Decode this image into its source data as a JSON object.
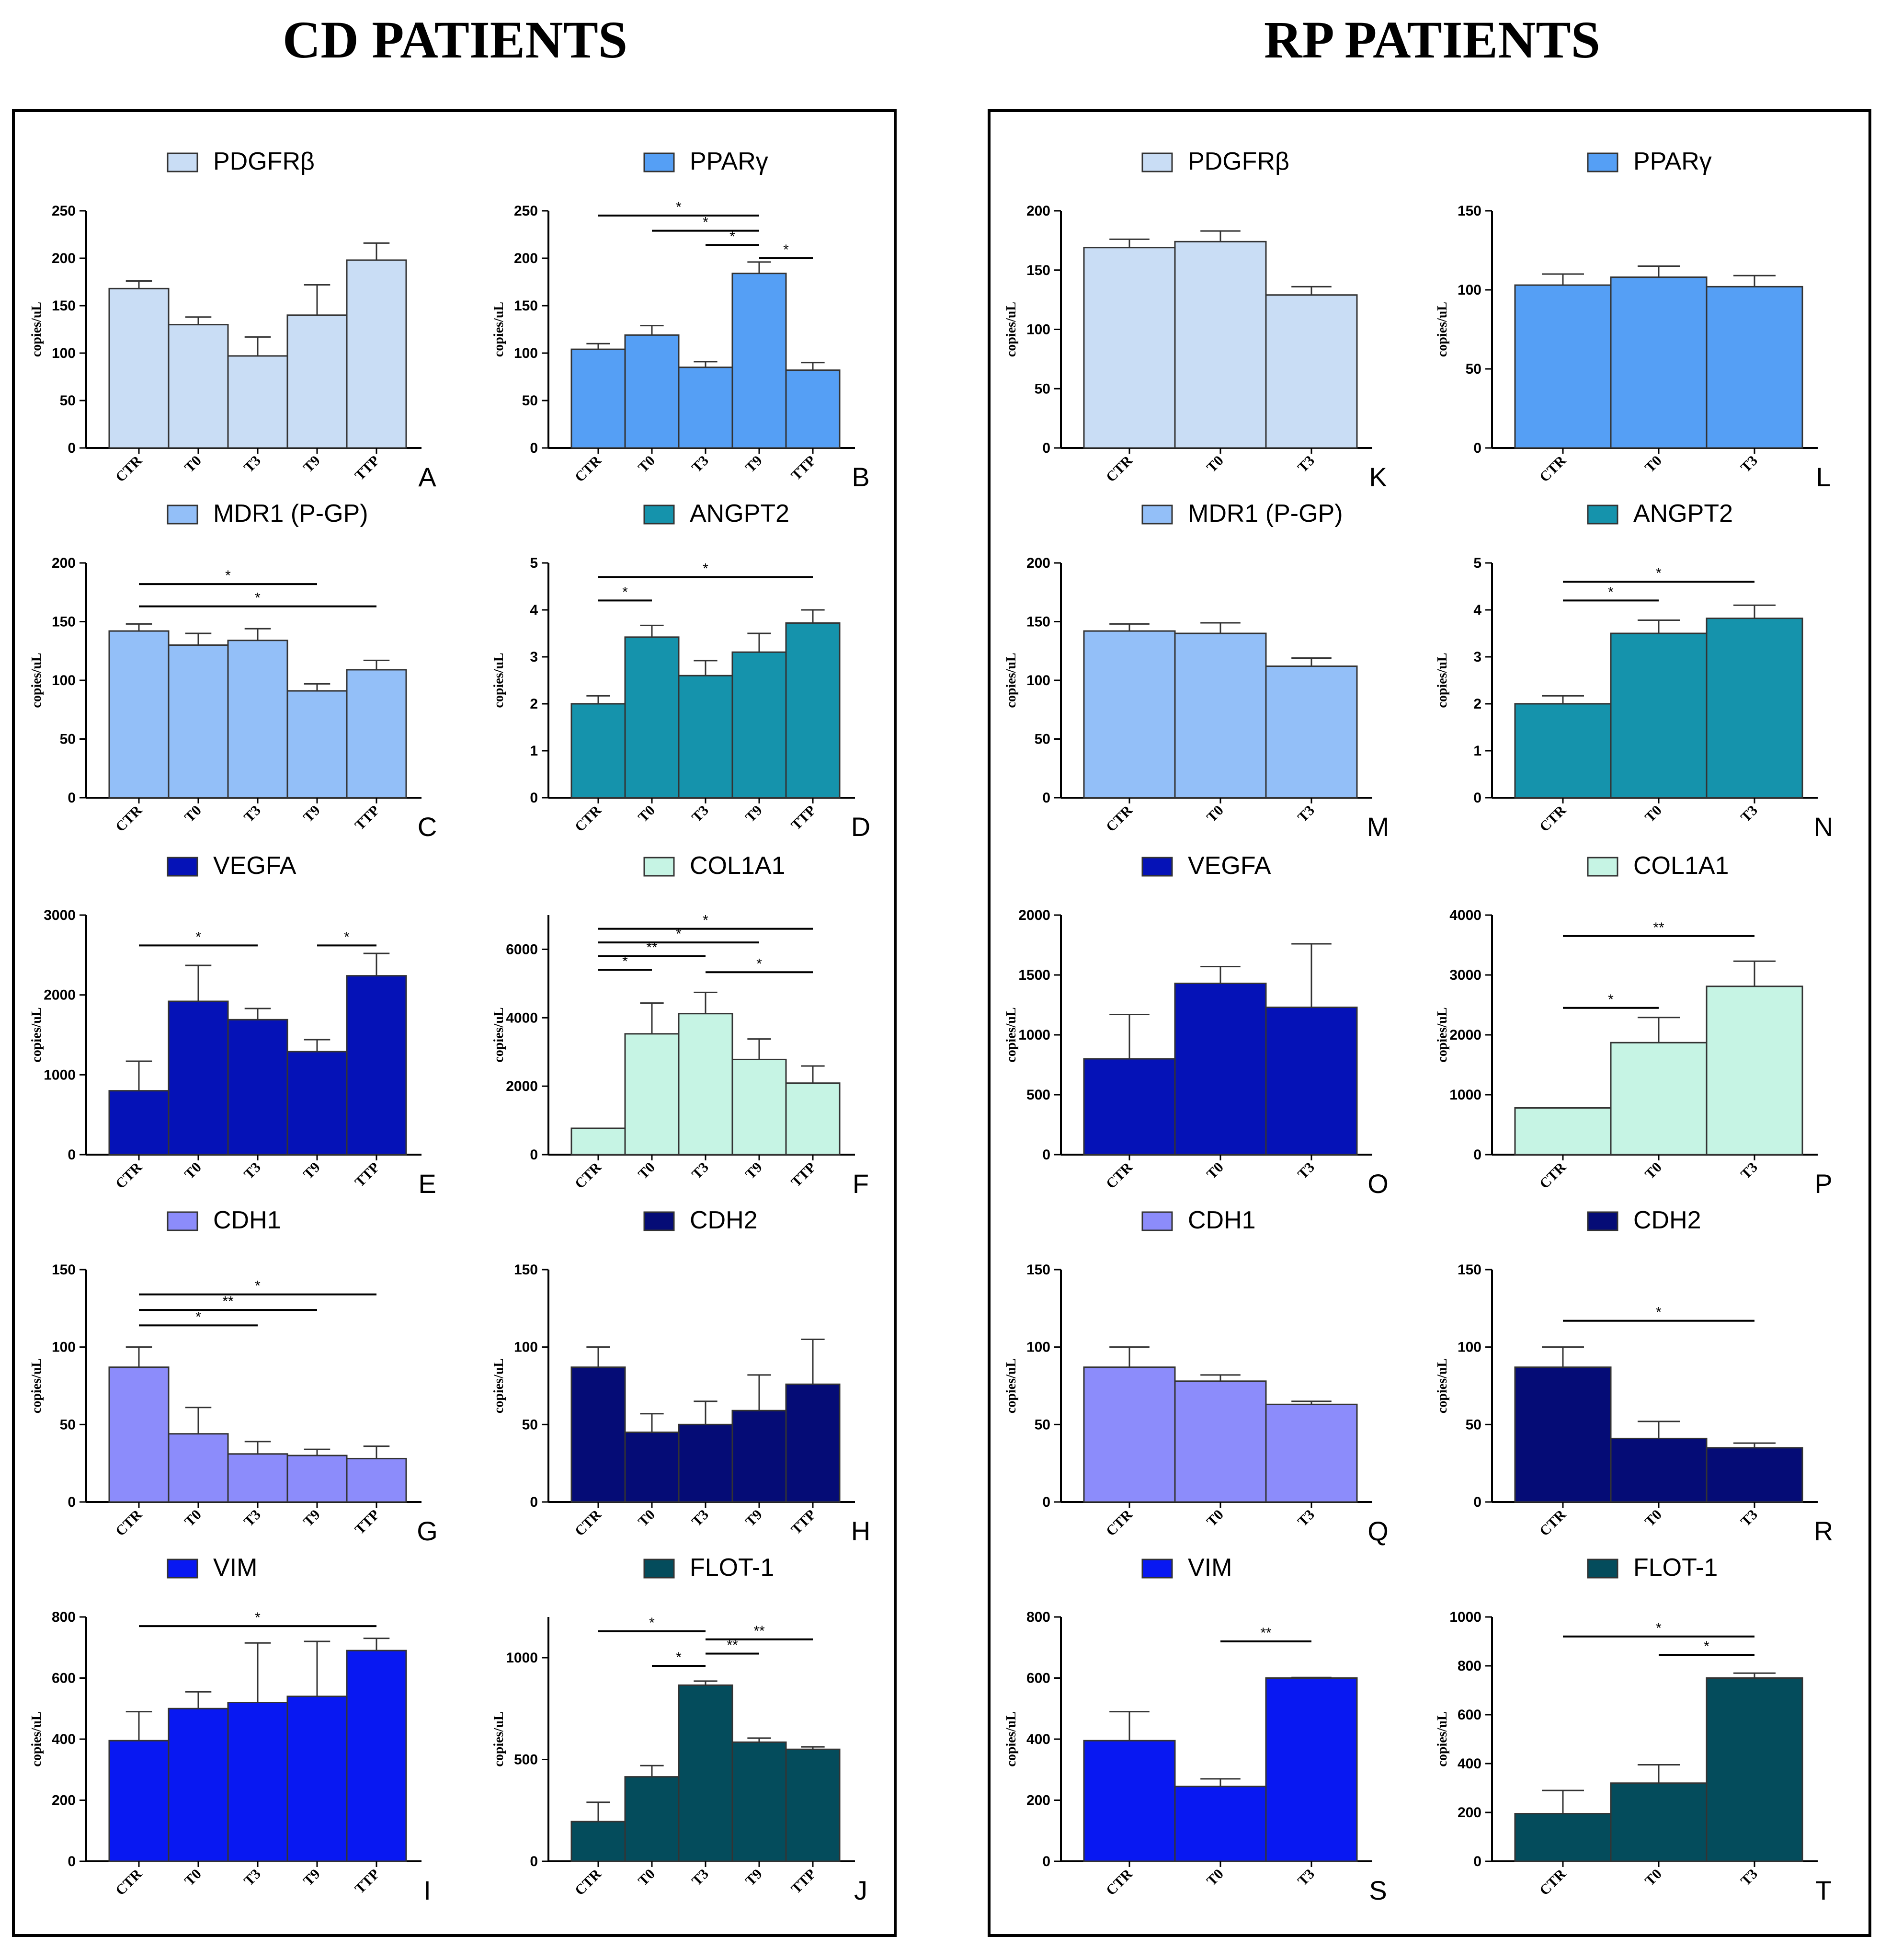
{
  "header": {
    "left_title": "CD PATIENTS",
    "right_title": "RP PATIENTS"
  },
  "y_axis_label": "copies/uL",
  "colors": {
    "PDGFRb": "#c9ddf5",
    "PPARg": "#559ff5",
    "MDR1": "#93bff8",
    "ANGPT2": "#1593ac",
    "VEGFA": "#0512b7",
    "COL1A1": "#c6f4e4",
    "CDH1": "#8c8cfb",
    "CDH2": "#050c76",
    "VIM": "#0818f2",
    "FLOT1": "#044c5c"
  },
  "chart_data": [
    {
      "letter": "A",
      "type": "bar",
      "legend": "PDGFRβ",
      "color_key": "PDGFRb",
      "categories": [
        "CTR",
        "T0",
        "T3",
        "T9",
        "TTP"
      ],
      "values": [
        168,
        130,
        97,
        140,
        198
      ],
      "errors": [
        8,
        8,
        20,
        32,
        18
      ],
      "ylim": [
        0,
        250
      ],
      "yticks": [
        0,
        50,
        100,
        150,
        200,
        250
      ],
      "ylabel": "copies/uL",
      "sig": []
    },
    {
      "letter": "B",
      "type": "bar",
      "legend": "PPARγ",
      "color_key": "PPARg",
      "categories": [
        "CTR",
        "T0",
        "T3",
        "T9",
        "TTP"
      ],
      "values": [
        104,
        119,
        85,
        184,
        82
      ],
      "errors": [
        6,
        10,
        6,
        12,
        8
      ],
      "ylim": [
        0,
        250
      ],
      "yticks": [
        0,
        50,
        100,
        150,
        200,
        250
      ],
      "ylabel": "copies/uL",
      "sig": [
        {
          "from": 0,
          "to": 3,
          "label": "*",
          "y": 245
        },
        {
          "from": 1,
          "to": 3,
          "label": "*",
          "y": 229
        },
        {
          "from": 2,
          "to": 3,
          "label": "*",
          "y": 214
        },
        {
          "from": 3,
          "to": 4,
          "label": "*",
          "y": 200
        }
      ]
    },
    {
      "letter": "C",
      "type": "bar",
      "legend": "MDR1 (P-GP)",
      "color_key": "MDR1",
      "categories": [
        "CTR",
        "T0",
        "T3",
        "T9",
        "TTP"
      ],
      "values": [
        142,
        130,
        134,
        91,
        109
      ],
      "errors": [
        6,
        10,
        10,
        6,
        8
      ],
      "ylim": [
        0,
        200
      ],
      "yticks": [
        0,
        50,
        100,
        150,
        200
      ],
      "ylabel": "copies/uL",
      "sig": [
        {
          "from": 0,
          "to": 3,
          "label": "*",
          "y": 182
        },
        {
          "from": 0,
          "to": 4,
          "label": "*",
          "y": 163
        }
      ]
    },
    {
      "letter": "D",
      "type": "bar",
      "legend": "ANGPT2",
      "color_key": "ANGPT2",
      "categories": [
        "CTR",
        "T0",
        "T3",
        "T9",
        "TTP"
      ],
      "values": [
        2.0,
        3.42,
        2.6,
        3.1,
        3.72
      ],
      "errors": [
        0.17,
        0.25,
        0.32,
        0.4,
        0.28
      ],
      "ylim": [
        0,
        5
      ],
      "yticks": [
        0,
        1,
        2,
        3,
        4,
        5
      ],
      "ylabel": "copies/uL",
      "sig": [
        {
          "from": 0,
          "to": 4,
          "label": "*",
          "y": 4.7
        },
        {
          "from": 0,
          "to": 1,
          "label": "*",
          "y": 4.2
        }
      ]
    },
    {
      "letter": "E",
      "type": "bar",
      "legend": "VEGFA",
      "color_key": "VEGFA",
      "categories": [
        "CTR",
        "T0",
        "T3",
        "T9",
        "TTP"
      ],
      "values": [
        800,
        1920,
        1690,
        1290,
        2240
      ],
      "errors": [
        370,
        450,
        140,
        150,
        280
      ],
      "ylim": [
        0,
        3000
      ],
      "yticks": [
        0,
        1000,
        2000,
        3000
      ],
      "ylabel": "copies/uL",
      "sig": [
        {
          "from": 0,
          "to": 2,
          "label": "*",
          "y": 2620
        },
        {
          "from": 3,
          "to": 4,
          "label": "*",
          "y": 2620
        }
      ]
    },
    {
      "letter": "F",
      "type": "bar",
      "legend": "COL1A1",
      "color_key": "COL1A1",
      "categories": [
        "CTR",
        "T0",
        "T3",
        "T9",
        "TTP"
      ],
      "values": [
        770,
        3530,
        4120,
        2780,
        2090
      ],
      "errors": [
        0,
        900,
        620,
        600,
        500
      ],
      "ylim": [
        0,
        7000
      ],
      "yticks": [
        0,
        2000,
        4000,
        6000
      ],
      "ylabel": "copies/uL",
      "sig": [
        {
          "from": 0,
          "to": 4,
          "label": "*",
          "y": 6600
        },
        {
          "from": 0,
          "to": 3,
          "label": "*",
          "y": 6200
        },
        {
          "from": 0,
          "to": 2,
          "label": "**",
          "y": 5800
        },
        {
          "from": 0,
          "to": 1,
          "label": "*",
          "y": 5400
        },
        {
          "from": 2,
          "to": 4,
          "label": "*",
          "y": 5330
        }
      ]
    },
    {
      "letter": "G",
      "type": "bar",
      "legend": "CDH1",
      "color_key": "CDH1",
      "categories": [
        "CTR",
        "T0",
        "T3",
        "T9",
        "TTP"
      ],
      "values": [
        87,
        44,
        31,
        30,
        28
      ],
      "errors": [
        13,
        17,
        8,
        4,
        8
      ],
      "ylim": [
        0,
        150
      ],
      "yticks": [
        0,
        50,
        100,
        150
      ],
      "ylabel": "copies/uL",
      "sig": [
        {
          "from": 0,
          "to": 4,
          "label": "*",
          "y": 134
        },
        {
          "from": 0,
          "to": 3,
          "label": "**",
          "y": 124
        },
        {
          "from": 0,
          "to": 2,
          "label": "*",
          "y": 114
        }
      ]
    },
    {
      "letter": "H",
      "type": "bar",
      "legend": "CDH2",
      "color_key": "CDH2",
      "categories": [
        "CTR",
        "T0",
        "T3",
        "T9",
        "TTP"
      ],
      "values": [
        87,
        45,
        50,
        59,
        76
      ],
      "errors": [
        13,
        12,
        15,
        23,
        29
      ],
      "ylim": [
        0,
        150
      ],
      "yticks": [
        0,
        50,
        100,
        150
      ],
      "ylabel": "copies/uL",
      "sig": []
    },
    {
      "letter": "I",
      "type": "bar",
      "legend": "VIM",
      "color_key": "VIM",
      "categories": [
        "CTR",
        "T0",
        "T3",
        "T9",
        "TTP"
      ],
      "values": [
        395,
        500,
        520,
        540,
        690
      ],
      "errors": [
        95,
        55,
        195,
        180,
        40
      ],
      "ylim": [
        0,
        800
      ],
      "yticks": [
        0,
        200,
        400,
        600,
        800
      ],
      "ylabel": "copies/uL",
      "sig": [
        {
          "from": 0,
          "to": 4,
          "label": "*",
          "y": 770
        }
      ]
    },
    {
      "letter": "J",
      "type": "bar",
      "legend": "FLOT-1",
      "color_key": "FLOT1",
      "categories": [
        "CTR",
        "T0",
        "T3",
        "T9",
        "TTP"
      ],
      "values": [
        195,
        415,
        865,
        585,
        550
      ],
      "errors": [
        95,
        55,
        20,
        20,
        12
      ],
      "ylim": [
        0,
        1200
      ],
      "yticks": [
        0,
        500,
        1000
      ],
      "ylabel": "copies/uL",
      "sig": [
        {
          "from": 0,
          "to": 2,
          "label": "*",
          "y": 1130
        },
        {
          "from": 2,
          "to": 4,
          "label": "**",
          "y": 1090
        },
        {
          "from": 2,
          "to": 3,
          "label": "**",
          "y": 1020
        },
        {
          "from": 1,
          "to": 2,
          "label": "*",
          "y": 960
        }
      ]
    },
    {
      "letter": "K",
      "type": "bar",
      "legend": "PDGFRβ",
      "color_key": "PDGFRb",
      "categories": [
        "CTR",
        "T0",
        "T3"
      ],
      "values": [
        169,
        174,
        129
      ],
      "errors": [
        7,
        9,
        7
      ],
      "ylim": [
        0,
        200
      ],
      "yticks": [
        0,
        50,
        100,
        150,
        200
      ],
      "ylabel": "copies/uL",
      "sig": []
    },
    {
      "letter": "L",
      "type": "bar",
      "legend": "PPARγ",
      "color_key": "PPARg",
      "categories": [
        "CTR",
        "T0",
        "T3"
      ],
      "values": [
        103,
        108,
        102
      ],
      "errors": [
        7,
        7,
        7
      ],
      "ylim": [
        0,
        150
      ],
      "yticks": [
        0,
        50,
        100,
        150
      ],
      "ylabel": "copies/uL",
      "sig": []
    },
    {
      "letter": "M",
      "type": "bar",
      "legend": "MDR1 (P-GP)",
      "color_key": "MDR1",
      "categories": [
        "CTR",
        "T0",
        "T3"
      ],
      "values": [
        142,
        140,
        112
      ],
      "errors": [
        6,
        9,
        7
      ],
      "ylim": [
        0,
        200
      ],
      "yticks": [
        0,
        50,
        100,
        150,
        200
      ],
      "ylabel": "copies/uL",
      "sig": []
    },
    {
      "letter": "N",
      "type": "bar",
      "legend": "ANGPT2",
      "color_key": "ANGPT2",
      "categories": [
        "CTR",
        "T0",
        "T3"
      ],
      "values": [
        2.0,
        3.5,
        3.82
      ],
      "errors": [
        0.17,
        0.28,
        0.28
      ],
      "ylim": [
        0,
        5
      ],
      "yticks": [
        0,
        1,
        2,
        3,
        4,
        5
      ],
      "ylabel": "copies/uL",
      "sig": [
        {
          "from": 0,
          "to": 2,
          "label": "*",
          "y": 4.6
        },
        {
          "from": 0,
          "to": 1,
          "label": "*",
          "y": 4.2
        }
      ]
    },
    {
      "letter": "O",
      "type": "bar",
      "legend": "VEGFA",
      "color_key": "VEGFA",
      "categories": [
        "CTR",
        "T0",
        "T3"
      ],
      "values": [
        800,
        1430,
        1230
      ],
      "errors": [
        370,
        140,
        530
      ],
      "ylim": [
        0,
        2000
      ],
      "yticks": [
        0,
        500,
        1000,
        1500,
        2000
      ],
      "ylabel": "copies/uL",
      "sig": []
    },
    {
      "letter": "P",
      "type": "bar",
      "legend": "COL1A1",
      "color_key": "COL1A1",
      "categories": [
        "CTR",
        "T0",
        "T3"
      ],
      "values": [
        780,
        1870,
        2810
      ],
      "errors": [
        0,
        420,
        420
      ],
      "ylim": [
        0,
        4000
      ],
      "yticks": [
        0,
        1000,
        2000,
        3000,
        4000
      ],
      "ylabel": "copies/uL",
      "sig": [
        {
          "from": 0,
          "to": 2,
          "label": "**",
          "y": 3650
        },
        {
          "from": 0,
          "to": 1,
          "label": "*",
          "y": 2450
        }
      ]
    },
    {
      "letter": "Q",
      "type": "bar",
      "legend": "CDH1",
      "color_key": "CDH1",
      "categories": [
        "CTR",
        "T0",
        "T3"
      ],
      "values": [
        87,
        78,
        63
      ],
      "errors": [
        13,
        4,
        2
      ],
      "ylim": [
        0,
        150
      ],
      "yticks": [
        0,
        50,
        100,
        150
      ],
      "ylabel": "copies/uL",
      "sig": []
    },
    {
      "letter": "R",
      "type": "bar",
      "legend": "CDH2",
      "color_key": "CDH2",
      "categories": [
        "CTR",
        "T0",
        "T3"
      ],
      "values": [
        87,
        41,
        35
      ],
      "errors": [
        13,
        11,
        3
      ],
      "ylim": [
        0,
        150
      ],
      "yticks": [
        0,
        50,
        100,
        150
      ],
      "ylabel": "copies/uL",
      "sig": [
        {
          "from": 0,
          "to": 2,
          "label": "*",
          "y": 117
        }
      ]
    },
    {
      "letter": "S",
      "type": "bar",
      "legend": "VIM",
      "color_key": "VIM",
      "categories": [
        "CTR",
        "T0",
        "T3"
      ],
      "values": [
        395,
        245,
        600
      ],
      "errors": [
        95,
        25,
        2
      ],
      "ylim": [
        0,
        800
      ],
      "yticks": [
        0,
        200,
        400,
        600,
        800
      ],
      "ylabel": "copies/uL",
      "sig": [
        {
          "from": 1,
          "to": 2,
          "label": "**",
          "y": 720
        }
      ]
    },
    {
      "letter": "T",
      "type": "bar",
      "legend": "FLOT-1",
      "color_key": "FLOT1",
      "categories": [
        "CTR",
        "T0",
        "T3"
      ],
      "values": [
        195,
        320,
        750
      ],
      "errors": [
        95,
        75,
        20
      ],
      "ylim": [
        0,
        1000
      ],
      "yticks": [
        0,
        200,
        400,
        600,
        800,
        1000
      ],
      "ylabel": "copies/uL",
      "sig": [
        {
          "from": 0,
          "to": 2,
          "label": "*",
          "y": 920
        },
        {
          "from": 1,
          "to": 2,
          "label": "*",
          "y": 845
        }
      ]
    }
  ]
}
